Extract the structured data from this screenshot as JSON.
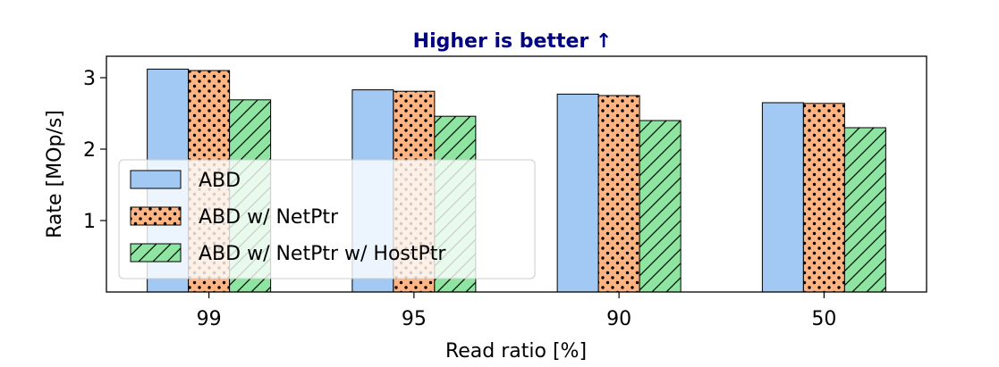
{
  "chart_data": {
    "type": "bar",
    "title": "Higher is better ↑",
    "title_color": "#000080",
    "xlabel": "Read ratio [%]",
    "ylabel": "Rate [MOp/s]",
    "categories": [
      "99",
      "95",
      "90",
      "50"
    ],
    "ylim": [
      0,
      3.3
    ],
    "yticks": [
      1,
      2,
      3
    ],
    "grid": false,
    "legend_position": "center-left",
    "series": [
      {
        "name": "ABD",
        "values": [
          3.12,
          2.83,
          2.77,
          2.65
        ],
        "color": "#a1c9f4",
        "pattern": "none"
      },
      {
        "name": "ABD w/ NetPtr",
        "values": [
          3.1,
          2.81,
          2.75,
          2.64
        ],
        "color": "#ffb482",
        "pattern": "dots"
      },
      {
        "name": "ABD w/ NetPtr w/ HostPtr",
        "values": [
          2.69,
          2.46,
          2.4,
          2.3
        ],
        "color": "#8de5a1",
        "pattern": "hatch"
      }
    ]
  }
}
